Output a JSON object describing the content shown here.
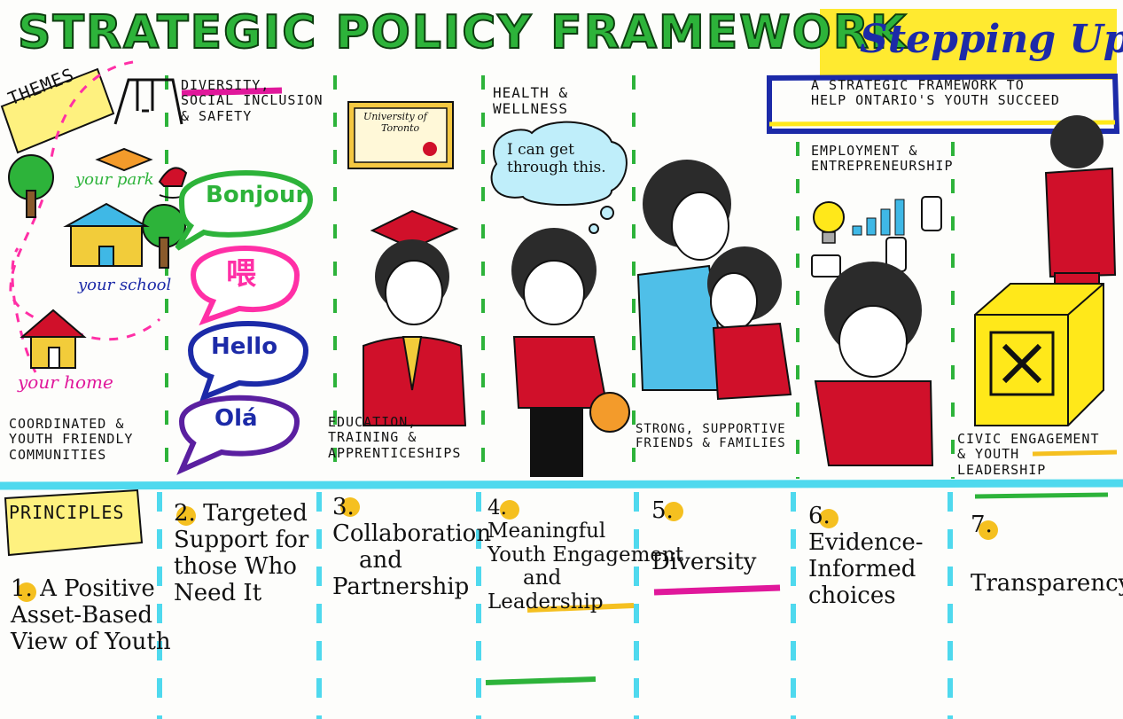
{
  "title": "STRATEGIC POLICY FRAMEWORK",
  "brand": "Stepping Up",
  "subtitle": [
    "A STRATEGIC FRAMEWORK TO",
    "HELP ONTARIO'S YOUTH SUCCEED"
  ],
  "themes_label": "THEMES",
  "principles_label": "PRINCIPLES",
  "community": {
    "park": "your park",
    "school": "your school",
    "home": "your home"
  },
  "themes": [
    {
      "id": "coordinated",
      "lines": [
        "COORDINATED &",
        "YOUTH FRIENDLY",
        "COMMUNITIES"
      ]
    },
    {
      "id": "diversity",
      "lines": [
        "DIVERSITY,",
        "SOCIAL INCLUSION",
        "& SAFETY"
      ]
    },
    {
      "id": "education",
      "lines": [
        "EDUCATION,",
        "TRAINING &",
        "APPRENTICESHIPS"
      ]
    },
    {
      "id": "health",
      "lines": [
        "HEALTH &",
        "WELLNESS"
      ]
    },
    {
      "id": "friends",
      "lines": [
        "STRONG, SUPPORTIVE",
        "FRIENDS & FAMILIES"
      ]
    },
    {
      "id": "employment",
      "lines": [
        "EMPLOYMENT &",
        "ENTREPRENEURSHIP"
      ]
    },
    {
      "id": "civic",
      "lines": [
        "CIVIC ENGAGEMENT",
        "& YOUTH",
        "LEADERSHIP"
      ]
    }
  ],
  "greetings": [
    "Bonjour",
    "喂",
    "Hello",
    "Olá"
  ],
  "diploma": [
    "University of",
    "Toronto"
  ],
  "thought": [
    "I can get",
    "through this."
  ],
  "principles": [
    {
      "num": "1.",
      "lines": [
        "A Positive",
        "Asset-Based",
        "View of Youth"
      ]
    },
    {
      "num": "2.",
      "lines": [
        "Targeted",
        "Support for",
        "those Who",
        "Need It"
      ]
    },
    {
      "num": "3.",
      "lines": [
        "Collaboration",
        "and",
        "Partnership"
      ]
    },
    {
      "num": "4.",
      "lines": [
        "Meaningful",
        "Youth Engagement",
        "and",
        "Leadership"
      ]
    },
    {
      "num": "5.",
      "lines": [
        "Diversity"
      ]
    },
    {
      "num": "6.",
      "lines": [
        "Evidence-",
        "Informed",
        "choices"
      ]
    },
    {
      "num": "7.",
      "lines": [
        "Transparency"
      ]
    }
  ],
  "colors": {
    "title_green": "#2db33a",
    "brand_blue": "#1c2aa8",
    "highlight_yellow": "#ffe81a",
    "divider_cyan": "#4fd9ee",
    "column_green": "#2db33a",
    "shirt_red": "#d0102a",
    "pink": "#ff2fa6",
    "magenta": "#e0189b"
  }
}
